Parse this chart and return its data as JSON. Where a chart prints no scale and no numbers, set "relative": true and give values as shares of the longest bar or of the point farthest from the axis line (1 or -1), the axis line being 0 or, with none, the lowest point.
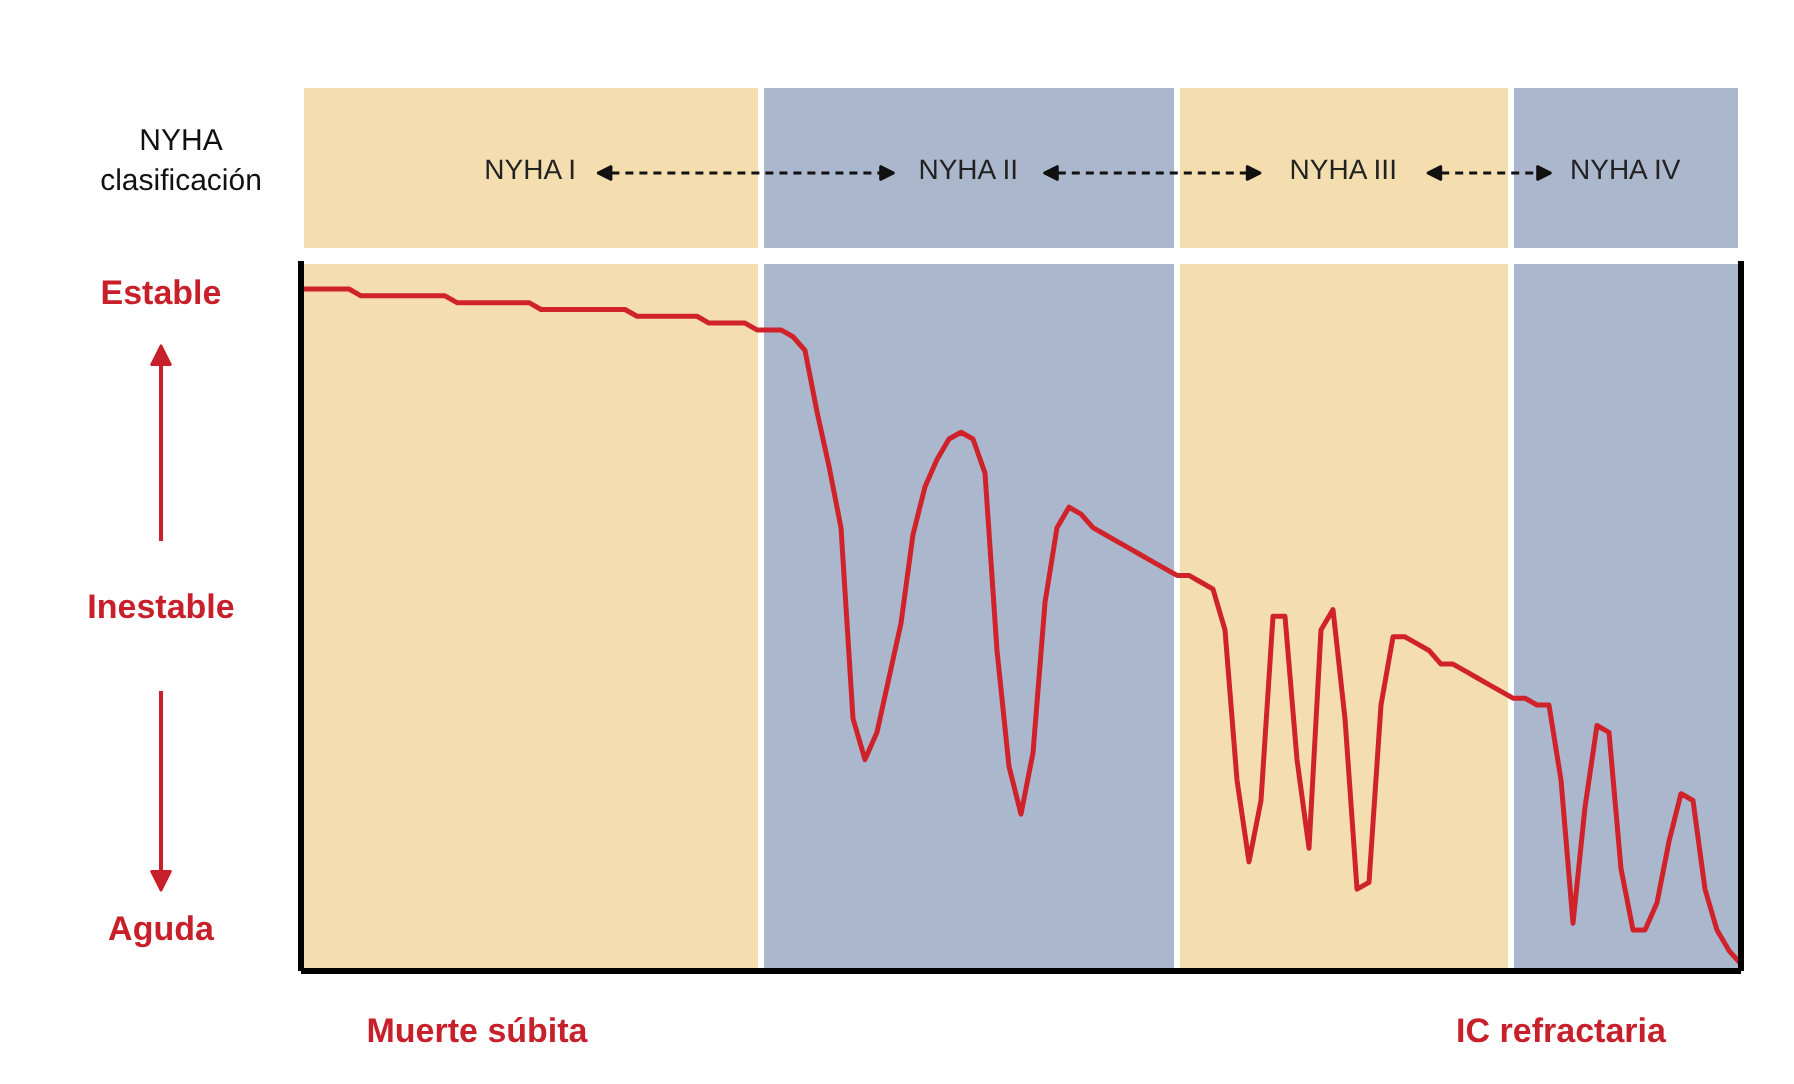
{
  "chart_data": {
    "type": "line",
    "relative": true,
    "marker": "none",
    "line_style": "solid",
    "categories": [
      null,
      null,
      null,
      null,
      null,
      null,
      null,
      null,
      null,
      null,
      null,
      null,
      null,
      null,
      null,
      null,
      null,
      null,
      null,
      null,
      null,
      null,
      null,
      null,
      null,
      null,
      null,
      null,
      null,
      null,
      null,
      null,
      null,
      null,
      null,
      null,
      null,
      null,
      null,
      null,
      null,
      null,
      null,
      null,
      null,
      null,
      null,
      null,
      null,
      null,
      null,
      null,
      null,
      null,
      null,
      null,
      null,
      null,
      null,
      null,
      null,
      null,
      null,
      null,
      null,
      null,
      null,
      null,
      null,
      null,
      null,
      null,
      null,
      null,
      null,
      null,
      null,
      null,
      null,
      null,
      null,
      null,
      null,
      null,
      null,
      null,
      null,
      null,
      null,
      null,
      null,
      null,
      null,
      null,
      null,
      null,
      null,
      null,
      null,
      null,
      null,
      null,
      null,
      null,
      null,
      null,
      null,
      null,
      null,
      null,
      null,
      null,
      null,
      null,
      null,
      null,
      null,
      null,
      null,
      null,
      null
    ],
    "series": [
      {
        "color": "#d0222a",
        "values": [
          1.0,
          1.0,
          1.0,
          1.0,
          1.0,
          0.99,
          0.99,
          0.99,
          0.99,
          0.99,
          0.99,
          0.99,
          0.99,
          0.98,
          0.98,
          0.98,
          0.98,
          0.98,
          0.98,
          0.98,
          0.97,
          0.97,
          0.97,
          0.97,
          0.97,
          0.97,
          0.97,
          0.97,
          0.96,
          0.96,
          0.96,
          0.96,
          0.96,
          0.96,
          0.95,
          0.95,
          0.95,
          0.95,
          0.94,
          0.94,
          0.94,
          0.93,
          0.91,
          0.82,
          0.74,
          0.65,
          0.37,
          0.31,
          0.35,
          0.43,
          0.51,
          0.64,
          0.71,
          0.75,
          0.78,
          0.79,
          0.78,
          0.73,
          0.47,
          0.3,
          0.23,
          0.32,
          0.54,
          0.65,
          0.68,
          0.67,
          0.65,
          0.64,
          0.63,
          0.62,
          0.61,
          0.6,
          0.59,
          0.58,
          0.58,
          0.57,
          0.56,
          0.5,
          0.28,
          0.16,
          0.25,
          0.52,
          0.52,
          0.31,
          0.18,
          0.5,
          0.53,
          0.37,
          0.12,
          0.13,
          0.39,
          0.49,
          0.49,
          0.48,
          0.47,
          0.45,
          0.45,
          0.44,
          0.43,
          0.42,
          0.41,
          0.4,
          0.4,
          0.39,
          0.39,
          0.28,
          0.07,
          0.24,
          0.36,
          0.35,
          0.15,
          0.06,
          0.06,
          0.1,
          0.19,
          0.26,
          0.25,
          0.12,
          0.06,
          0.03,
          0.01
        ]
      }
    ],
    "annotations": [
      "NYHA\nclasificación",
      "Estable",
      "Inestable",
      "Aguda",
      "Muerte súbita",
      "IC refractaria",
      "NYHA I",
      "NYHA II",
      "NYHA III",
      "NYHA IV"
    ]
  }
}
